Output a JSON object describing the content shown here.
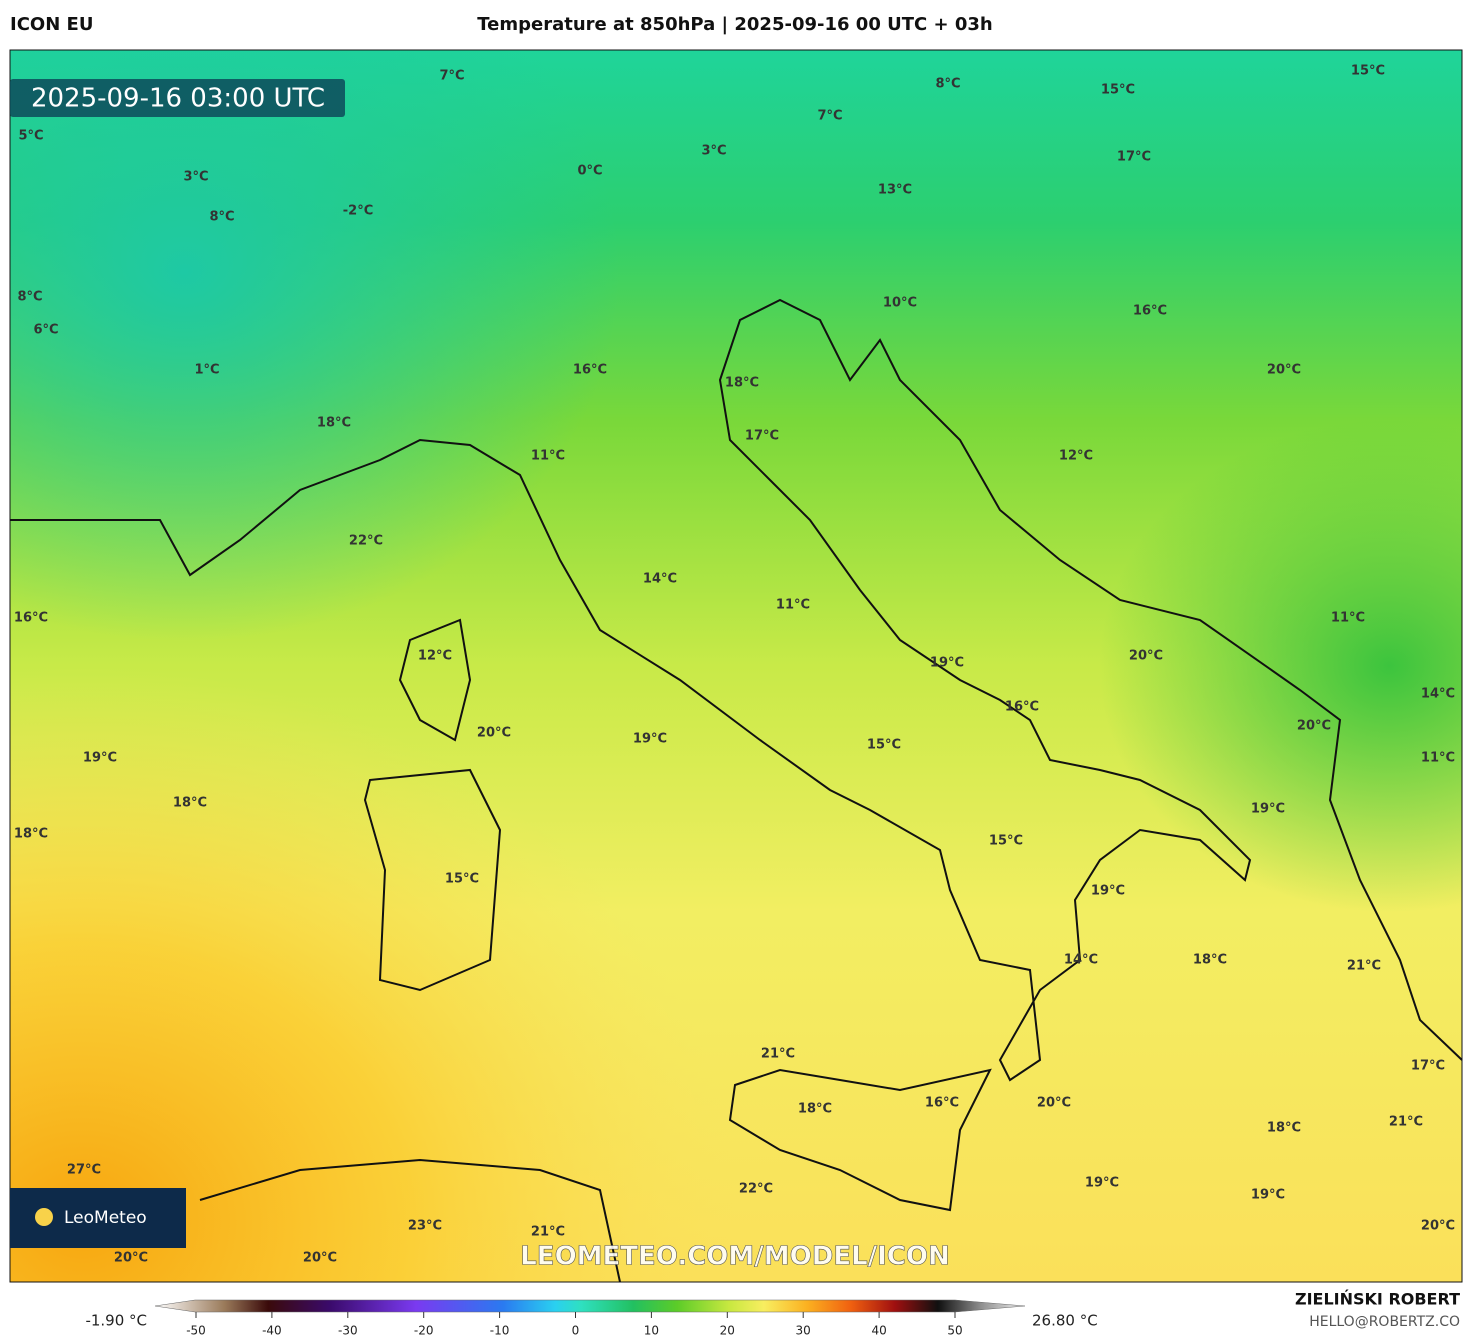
{
  "header": {
    "model": "ICON EU",
    "title": "Temperature at 850hPa | 2025-09-16 00 UTC + 03h"
  },
  "map": {
    "timestamp": "2025-09-16 03:00 UTC",
    "watermark": "LEOMETEO.COM/MODEL/ICON",
    "logo": "LeoMeteo",
    "labels": [
      "7°C",
      "8°C",
      "15°C",
      "15°C",
      "5°C",
      "7°C",
      "3°C",
      "0°C",
      "17°C",
      "3°C",
      "13°C",
      "8°C",
      "-2°C",
      "8°C",
      "10°C",
      "16°C",
      "6°C",
      "16°C",
      "1°C",
      "20°C",
      "18°C",
      "18°C",
      "17°C",
      "11°C",
      "12°C",
      "22°C",
      "14°C",
      "11°C",
      "16°C",
      "11°C",
      "12°C",
      "20°C",
      "19°C",
      "14°C",
      "16°C",
      "20°C",
      "20°C",
      "19°C",
      "15°C",
      "19°C",
      "11°C",
      "18°C",
      "19°C",
      "18°C",
      "15°C",
      "15°C",
      "19°C",
      "18°C",
      "14°C",
      "21°C",
      "21°C",
      "17°C",
      "20°C",
      "18°C",
      "16°C",
      "21°C",
      "18°C",
      "27°C",
      "19°C",
      "22°C",
      "19°C",
      "23°C",
      "21°C",
      "20°C",
      "20°C",
      "20°C"
    ]
  },
  "colorbar": {
    "min_label": "-1.90 °C",
    "max_label": "26.80 °C",
    "ticks": [
      -50,
      -40,
      -30,
      -20,
      -10,
      0,
      10,
      20,
      30,
      40,
      50
    ]
  },
  "footer": {
    "author": "ZIELIŃSKI ROBERT",
    "contact": "HELLO@ROBERTZ.CO"
  }
}
